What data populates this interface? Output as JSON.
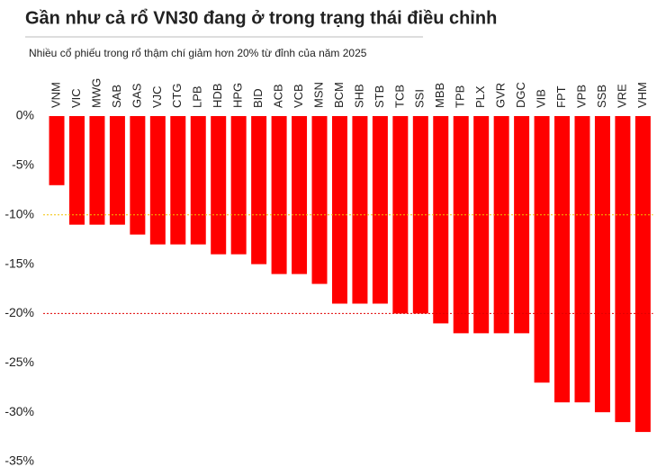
{
  "chart_data": {
    "type": "bar",
    "title": "Gần như cả rổ VN30 đang ở trong trạng thái điều chỉnh",
    "subtitle": "Nhiều cổ phiếu trong rổ thậm chí giảm hơn 20% từ đỉnh của năm 2025",
    "categories": [
      "VNM",
      "VIC",
      "MWG",
      "SAB",
      "GAS",
      "VJC",
      "CTG",
      "LPB",
      "HDB",
      "HPG",
      "BID",
      "ACB",
      "VCB",
      "MSN",
      "BCM",
      "SHB",
      "STB",
      "TCB",
      "SSI",
      "MBB",
      "TPB",
      "PLX",
      "GVR",
      "DGC",
      "VIB",
      "FPT",
      "VPB",
      "SSB",
      "VRE",
      "VHM"
    ],
    "values": [
      -7,
      -11,
      -11,
      -11,
      -12,
      -13,
      -13,
      -13,
      -14,
      -14,
      -15,
      -16,
      -16,
      -17,
      -19,
      -19,
      -19,
      -20,
      -20,
      -21,
      -22,
      -22,
      -22,
      -22,
      -27,
      -29,
      -29,
      -30,
      -31,
      -32
    ],
    "color": "#ff0000",
    "ylim": [
      0,
      -35
    ],
    "yticks": [
      {
        "value": 0,
        "label": "0%"
      },
      {
        "value": -5,
        "label": "-5%"
      },
      {
        "value": -10,
        "label": "-10%"
      },
      {
        "value": -15,
        "label": "-15%"
      },
      {
        "value": -20,
        "label": "-20%"
      },
      {
        "value": -25,
        "label": "-25%"
      },
      {
        "value": -30,
        "label": "-30%"
      },
      {
        "value": -35,
        "label": "-35%"
      }
    ],
    "reference_lines": [
      {
        "value": -10,
        "color": "#f2c200"
      },
      {
        "value": -20,
        "color": "#e00000"
      }
    ]
  }
}
